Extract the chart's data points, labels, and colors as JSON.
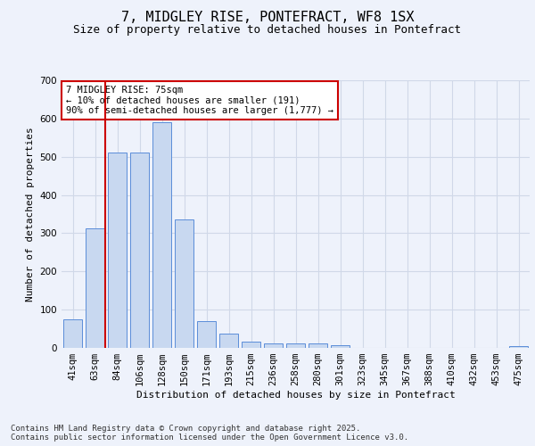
{
  "title1": "7, MIDGLEY RISE, PONTEFRACT, WF8 1SX",
  "title2": "Size of property relative to detached houses in Pontefract",
  "xlabel": "Distribution of detached houses by size in Pontefract",
  "ylabel": "Number of detached properties",
  "bar_labels": [
    "41sqm",
    "63sqm",
    "84sqm",
    "106sqm",
    "128sqm",
    "150sqm",
    "171sqm",
    "193sqm",
    "215sqm",
    "236sqm",
    "258sqm",
    "280sqm",
    "301sqm",
    "323sqm",
    "345sqm",
    "367sqm",
    "388sqm",
    "410sqm",
    "432sqm",
    "453sqm",
    "475sqm"
  ],
  "bar_values": [
    75,
    312,
    512,
    512,
    590,
    335,
    70,
    37,
    17,
    12,
    12,
    12,
    7,
    0,
    0,
    0,
    0,
    0,
    0,
    0,
    5
  ],
  "bar_color": "#c8d8f0",
  "bar_edge_color": "#5b8dd9",
  "grid_color": "#d0d8e8",
  "background_color": "#eef2fb",
  "vline_color": "#cc0000",
  "vline_pos": 1.45,
  "annotation_text": "7 MIDGLEY RISE: 75sqm\n← 10% of detached houses are smaller (191)\n90% of semi-detached houses are larger (1,777) →",
  "annotation_box_color": "#ffffff",
  "annotation_box_edge": "#cc0000",
  "ylim": [
    0,
    700
  ],
  "yticks": [
    0,
    100,
    200,
    300,
    400,
    500,
    600,
    700
  ],
  "footer": "Contains HM Land Registry data © Crown copyright and database right 2025.\nContains public sector information licensed under the Open Government Licence v3.0.",
  "title1_fontsize": 11,
  "title2_fontsize": 9,
  "label_fontsize": 8,
  "tick_fontsize": 7.5,
  "footer_fontsize": 6.5,
  "annot_fontsize": 7.5
}
